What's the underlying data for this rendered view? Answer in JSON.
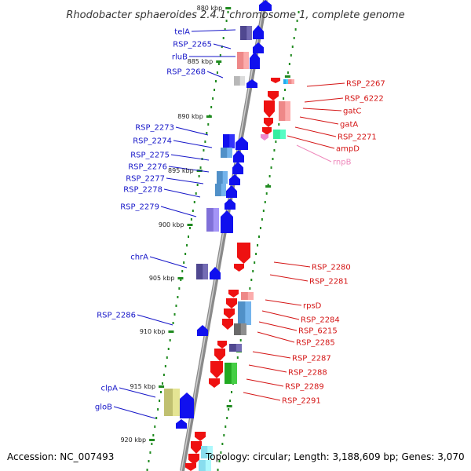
{
  "title": "Rhodobacter sphaeroides 2.4.1 chromosome 1, complete genome",
  "footer": {
    "accession": "Accession: NC_007493",
    "topology": "Topology: circular; Length: 3,188,609 bp; Genes: 3,070"
  },
  "colors": {
    "left_label": "#1515c8",
    "right_label": "#d41414",
    "pseudo_label": "#ee88bb",
    "backbone": "#8a8a8a",
    "dots": "#1f8a1f"
  },
  "scale_labels": [
    {
      "kbp": 880,
      "text": "880 kbp"
    },
    {
      "kbp": 885,
      "text": "885 kbp"
    },
    {
      "kbp": 890,
      "text": "890 kbp"
    },
    {
      "kbp": 895,
      "text": "895 kbp"
    },
    {
      "kbp": 900,
      "text": "900 kbp"
    },
    {
      "kbp": 905,
      "text": "905 kbp"
    },
    {
      "kbp": 910,
      "text": "910 kbp"
    },
    {
      "kbp": 915,
      "text": "915 kbp"
    },
    {
      "kbp": 920,
      "text": "920 kbp"
    }
  ],
  "left_genes": [
    {
      "label": "telA"
    },
    {
      "label": "RSP_2265"
    },
    {
      "label": "rluB"
    },
    {
      "label": "RSP_2268"
    },
    {
      "label": "RSP_2273"
    },
    {
      "label": "RSP_2274"
    },
    {
      "label": "RSP_2275"
    },
    {
      "label": "RSP_2276"
    },
    {
      "label": "RSP_2277"
    },
    {
      "label": "RSP_2278"
    },
    {
      "label": "RSP_2279"
    },
    {
      "label": "chrA"
    },
    {
      "label": "RSP_2286"
    },
    {
      "label": "clpA"
    },
    {
      "label": "gloB"
    }
  ],
  "right_genes": [
    {
      "label": "RSP_2267"
    },
    {
      "label": "RSP_6222"
    },
    {
      "label": "gatC"
    },
    {
      "label": "gatA"
    },
    {
      "label": "RSP_2271"
    },
    {
      "label": "ampD"
    },
    {
      "label": "rnpB",
      "pseudo": true
    },
    {
      "label": "RSP_2280"
    },
    {
      "label": "RSP_2281"
    },
    {
      "label": "rpsD"
    },
    {
      "label": "RSP_2284"
    },
    {
      "label": "RSP_6215"
    },
    {
      "label": "RSP_2285"
    },
    {
      "label": "RSP_2287"
    },
    {
      "label": "RSP_2288"
    },
    {
      "label": "RSP_2289"
    },
    {
      "label": "RSP_2291"
    }
  ]
}
